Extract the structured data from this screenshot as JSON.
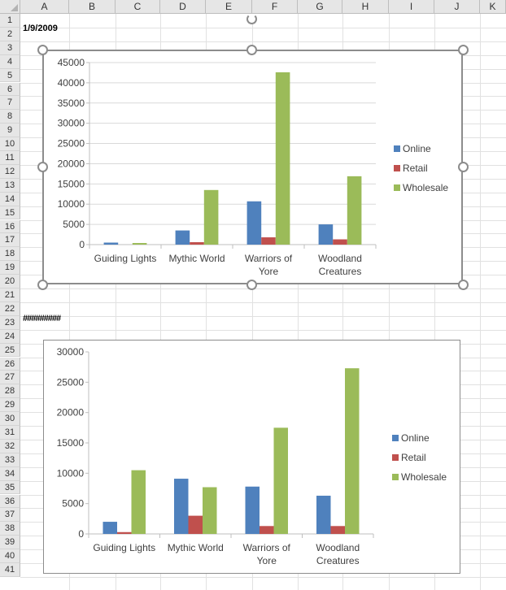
{
  "spreadsheet": {
    "columns": [
      "A",
      "B",
      "C",
      "D",
      "E",
      "F",
      "G",
      "H",
      "I",
      "J",
      "K"
    ],
    "rows": [
      "1",
      "2",
      "3",
      "4",
      "5",
      "6",
      "7",
      "8",
      "9",
      "10",
      "11",
      "12",
      "13",
      "14",
      "15",
      "16",
      "17",
      "18",
      "19",
      "20",
      "21",
      "22",
      "23",
      "24",
      "25",
      "26",
      "27",
      "28",
      "29",
      "30",
      "31",
      "32",
      "33",
      "34",
      "35",
      "36",
      "37",
      "38",
      "39",
      "40",
      "41"
    ],
    "cells": {
      "A1": "1/9/2009",
      "A22": "#########"
    }
  },
  "colors": {
    "Online": "#4f81bd",
    "Retail": "#c0504d",
    "Wholesale": "#9bbb59",
    "gridline": "#d9d9d9",
    "axis": "#bfbfbf",
    "selection_border": "#8c8c8c"
  },
  "chart_data": [
    {
      "type": "bar",
      "selected": true,
      "title": "",
      "categories": [
        "Guiding Lights",
        "Mythic World",
        "Warriors of Yore",
        "Woodland Creatures"
      ],
      "category_lines": [
        [
          "Guiding Lights"
        ],
        [
          "Mythic World"
        ],
        [
          "Warriors of",
          "Yore"
        ],
        [
          "Woodland",
          "Creatures"
        ]
      ],
      "series": [
        {
          "name": "Online",
          "values": [
            500,
            3500,
            10700,
            5000
          ]
        },
        {
          "name": "Retail",
          "values": [
            0,
            600,
            1800,
            1300
          ]
        },
        {
          "name": "Wholesale",
          "values": [
            400,
            13500,
            42600,
            16900
          ]
        }
      ],
      "ylim": [
        0,
        45000
      ],
      "yticks": [
        0,
        5000,
        10000,
        15000,
        20000,
        25000,
        30000,
        35000,
        40000,
        45000
      ],
      "grid": true,
      "legend": "right"
    },
    {
      "type": "bar",
      "selected": false,
      "title": "",
      "categories": [
        "Guiding Lights",
        "Mythic World",
        "Warriors of Yore",
        "Woodland Creatures"
      ],
      "category_lines": [
        [
          "Guiding Lights"
        ],
        [
          "Mythic World"
        ],
        [
          "Warriors of",
          "Yore"
        ],
        [
          "Woodland",
          "Creatures"
        ]
      ],
      "series": [
        {
          "name": "Online",
          "values": [
            2000,
            9100,
            7800,
            6300
          ]
        },
        {
          "name": "Retail",
          "values": [
            300,
            3000,
            1300,
            1300
          ]
        },
        {
          "name": "Wholesale",
          "values": [
            10500,
            7700,
            17500,
            27300
          ]
        }
      ],
      "ylim": [
        0,
        30000
      ],
      "yticks": [
        0,
        5000,
        10000,
        15000,
        20000,
        25000,
        30000
      ],
      "grid": false,
      "legend": "right"
    }
  ]
}
